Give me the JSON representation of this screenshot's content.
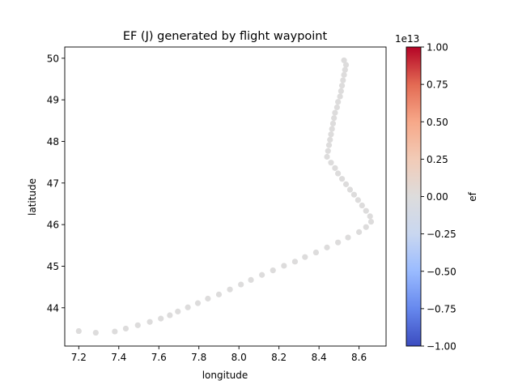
{
  "chart_data": {
    "type": "scatter",
    "title": "EF (J) generated by flight waypoint",
    "xlabel": "longitude",
    "ylabel": "latitude",
    "xlim": [
      7.13,
      8.735
    ],
    "ylim": [
      43.08,
      50.27
    ],
    "xticks": [
      {
        "value": 7.2,
        "label": "7.2"
      },
      {
        "value": 7.4,
        "label": "7.4"
      },
      {
        "value": 7.6,
        "label": "7.6"
      },
      {
        "value": 7.8,
        "label": "7.8"
      },
      {
        "value": 8.0,
        "label": "8.0"
      },
      {
        "value": 8.2,
        "label": "8.2"
      },
      {
        "value": 8.4,
        "label": "8.4"
      },
      {
        "value": 8.6,
        "label": "8.6"
      }
    ],
    "yticks": [
      {
        "value": 44,
        "label": "44"
      },
      {
        "value": 45,
        "label": "45"
      },
      {
        "value": 46,
        "label": "46"
      },
      {
        "value": 47,
        "label": "47"
      },
      {
        "value": 48,
        "label": "48"
      },
      {
        "value": 49,
        "label": "49"
      },
      {
        "value": 50,
        "label": "50"
      }
    ],
    "point_color": "#dddcdc",
    "grid": false,
    "points": [
      {
        "x": 7.2,
        "y": 43.44
      },
      {
        "x": 7.285,
        "y": 43.4
      },
      {
        "x": 7.38,
        "y": 43.43
      },
      {
        "x": 7.435,
        "y": 43.5
      },
      {
        "x": 7.495,
        "y": 43.58
      },
      {
        "x": 7.555,
        "y": 43.66
      },
      {
        "x": 7.61,
        "y": 43.74
      },
      {
        "x": 7.655,
        "y": 43.82
      },
      {
        "x": 7.695,
        "y": 43.91
      },
      {
        "x": 7.745,
        "y": 44.01
      },
      {
        "x": 7.795,
        "y": 44.11
      },
      {
        "x": 7.845,
        "y": 44.22
      },
      {
        "x": 7.9,
        "y": 44.32
      },
      {
        "x": 7.955,
        "y": 44.44
      },
      {
        "x": 8.01,
        "y": 44.56
      },
      {
        "x": 8.06,
        "y": 44.67
      },
      {
        "x": 8.115,
        "y": 44.79
      },
      {
        "x": 8.17,
        "y": 44.9
      },
      {
        "x": 8.225,
        "y": 45.01
      },
      {
        "x": 8.28,
        "y": 45.11
      },
      {
        "x": 8.33,
        "y": 45.22
      },
      {
        "x": 8.385,
        "y": 45.33
      },
      {
        "x": 8.44,
        "y": 45.45
      },
      {
        "x": 8.495,
        "y": 45.57
      },
      {
        "x": 8.545,
        "y": 45.69
      },
      {
        "x": 8.6,
        "y": 45.82
      },
      {
        "x": 8.635,
        "y": 45.94
      },
      {
        "x": 8.66,
        "y": 46.07
      },
      {
        "x": 8.655,
        "y": 46.2
      },
      {
        "x": 8.635,
        "y": 46.33
      },
      {
        "x": 8.615,
        "y": 46.46
      },
      {
        "x": 8.595,
        "y": 46.59
      },
      {
        "x": 8.575,
        "y": 46.72
      },
      {
        "x": 8.555,
        "y": 46.84
      },
      {
        "x": 8.535,
        "y": 46.97
      },
      {
        "x": 8.515,
        "y": 47.1
      },
      {
        "x": 8.495,
        "y": 47.23
      },
      {
        "x": 8.48,
        "y": 47.36
      },
      {
        "x": 8.46,
        "y": 47.49
      },
      {
        "x": 8.44,
        "y": 47.63
      },
      {
        "x": 8.445,
        "y": 47.77
      },
      {
        "x": 8.45,
        "y": 47.91
      },
      {
        "x": 8.455,
        "y": 48.04
      },
      {
        "x": 8.46,
        "y": 48.17
      },
      {
        "x": 8.465,
        "y": 48.3
      },
      {
        "x": 8.47,
        "y": 48.43
      },
      {
        "x": 8.475,
        "y": 48.56
      },
      {
        "x": 8.48,
        "y": 48.69
      },
      {
        "x": 8.49,
        "y": 48.82
      },
      {
        "x": 8.495,
        "y": 48.95
      },
      {
        "x": 8.505,
        "y": 49.08
      },
      {
        "x": 8.51,
        "y": 49.21
      },
      {
        "x": 8.515,
        "y": 49.34
      },
      {
        "x": 8.52,
        "y": 49.47
      },
      {
        "x": 8.525,
        "y": 49.6
      },
      {
        "x": 8.53,
        "y": 49.72
      },
      {
        "x": 8.535,
        "y": 49.84
      },
      {
        "x": 8.525,
        "y": 49.95
      }
    ],
    "colorbar": {
      "label": "ef",
      "multiplier_label": "1e13",
      "range": [
        -1.0,
        1.0
      ],
      "colormap": "coolwarm",
      "stops": [
        "#3b4cc0",
        "#6688ee",
        "#9abbff",
        "#c9d7f0",
        "#dddcdc",
        "#f2cbb7",
        "#f7a889",
        "#e36a53",
        "#b40426"
      ],
      "ticks": [
        {
          "value": 1.0,
          "label": "1.00"
        },
        {
          "value": 0.75,
          "label": "0.75"
        },
        {
          "value": 0.5,
          "label": "0.50"
        },
        {
          "value": 0.25,
          "label": "0.25"
        },
        {
          "value": 0.0,
          "label": "0.00"
        },
        {
          "value": -0.25,
          "label": "−0.25"
        },
        {
          "value": -0.5,
          "label": "−0.50"
        },
        {
          "value": -0.75,
          "label": "−0.75"
        },
        {
          "value": -1.0,
          "label": "−1.00"
        }
      ]
    }
  }
}
